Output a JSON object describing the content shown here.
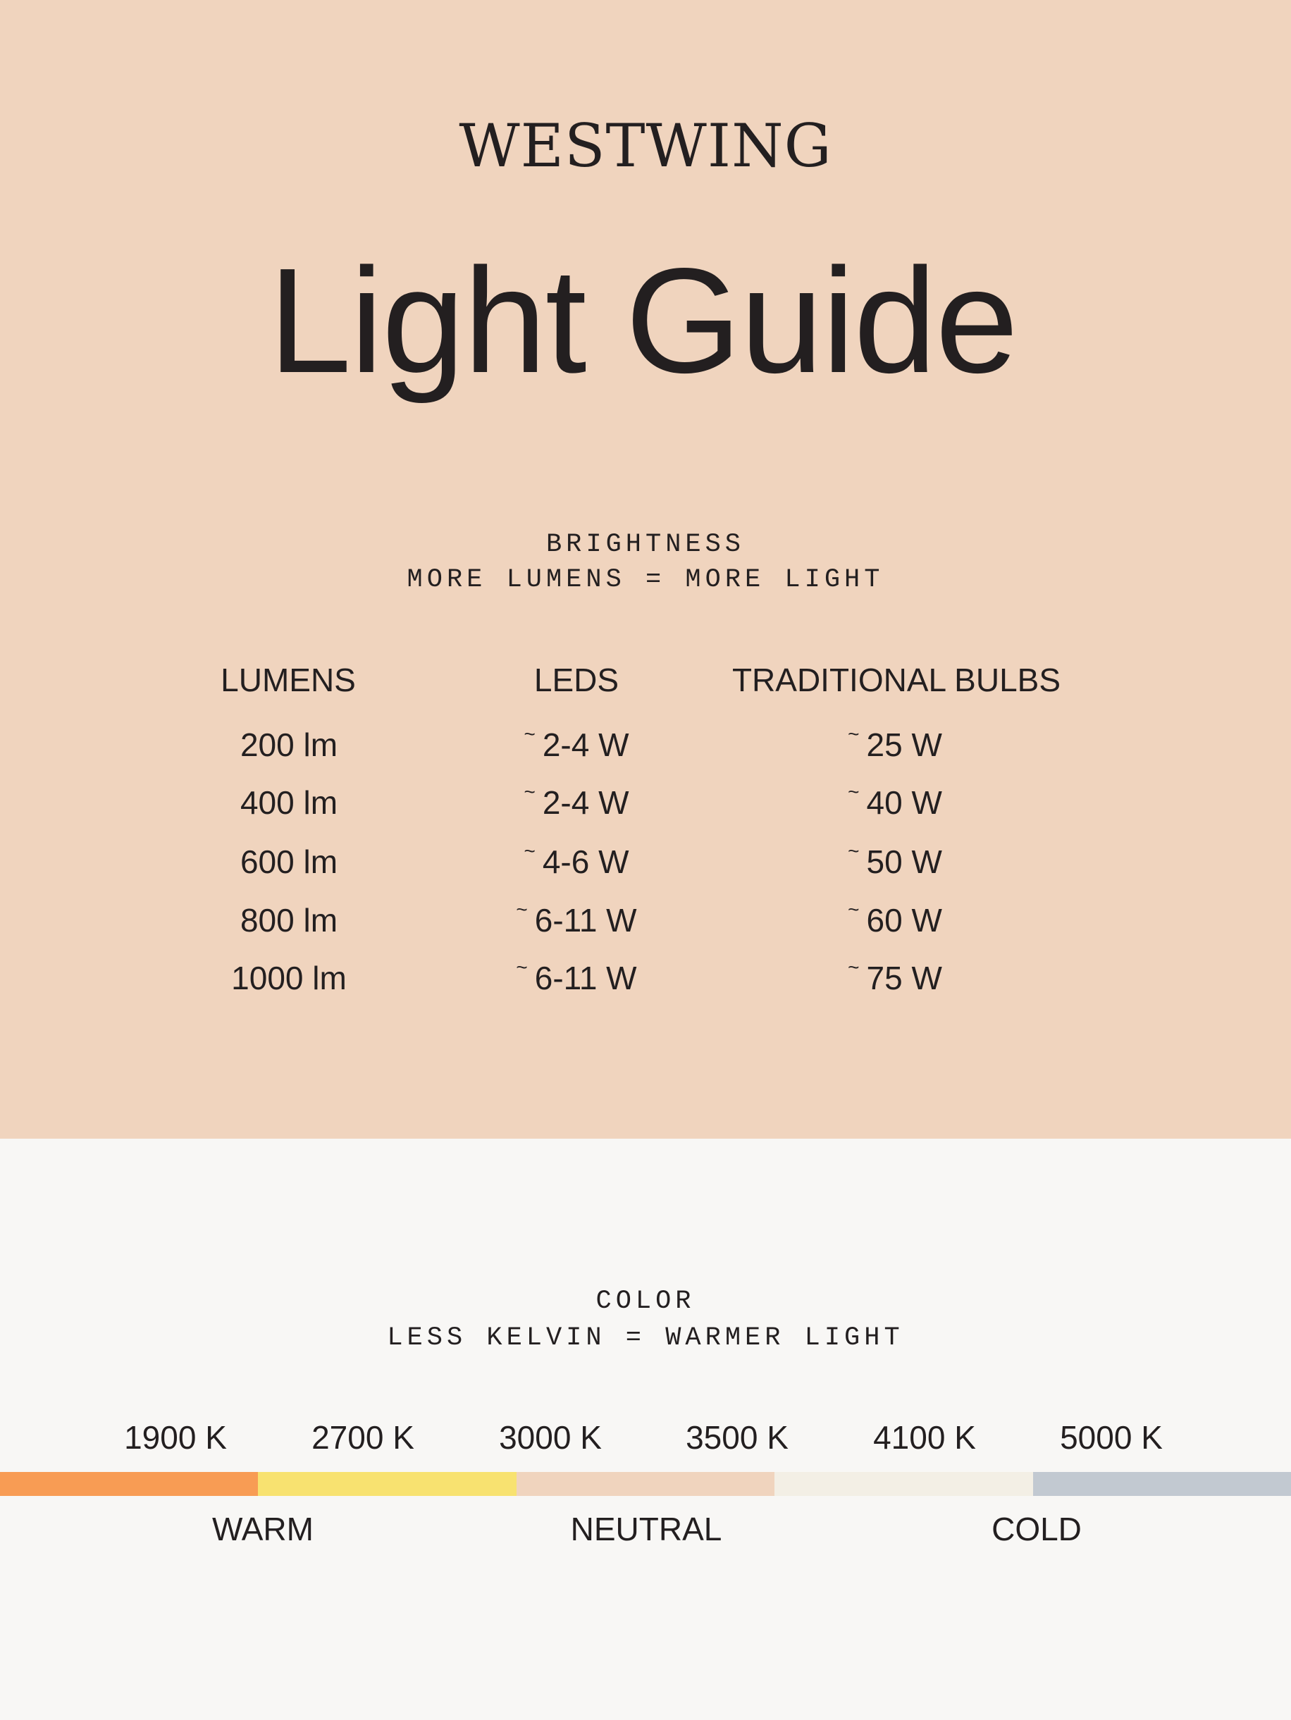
{
  "brand": "WESTWING",
  "title": "Light Guide",
  "brightness": {
    "heading": "BRIGHTNESS",
    "subheading": "MORE LUMENS = MORE LIGHT",
    "columns": [
      "LUMENS",
      "LEDS",
      "TRADITIONAL BULBS"
    ],
    "approx_symbol": "~",
    "rows": [
      {
        "lumens": "200 lm",
        "leds": "2-4 W",
        "bulbs": "25 W"
      },
      {
        "lumens": "400 lm",
        "leds": "2-4 W",
        "bulbs": "40 W"
      },
      {
        "lumens": "600 lm",
        "leds": "4-6 W",
        "bulbs": "50 W"
      },
      {
        "lumens": "800 lm",
        "leds": "6-11 W",
        "bulbs": "60 W"
      },
      {
        "lumens": "1000 lm",
        "leds": "6-11 W",
        "bulbs": "75 W"
      }
    ],
    "background_color": "#F0D4BE"
  },
  "color": {
    "heading": "COLOR",
    "subheading": "LESS KELVIN = WARMER LIGHT",
    "kelvin_labels": [
      "1900 K",
      "2700 K",
      "3000 K",
      "3500 K",
      "4100 K",
      "5000 K"
    ],
    "scale_colors": [
      "#F89C54",
      "#F8E270",
      "#F0D4BE",
      "#F3EFE5",
      "#C2C9D1"
    ],
    "zones": [
      "WARM",
      "NEUTRAL",
      "COLD"
    ],
    "background_color": "#F8F7F5"
  }
}
